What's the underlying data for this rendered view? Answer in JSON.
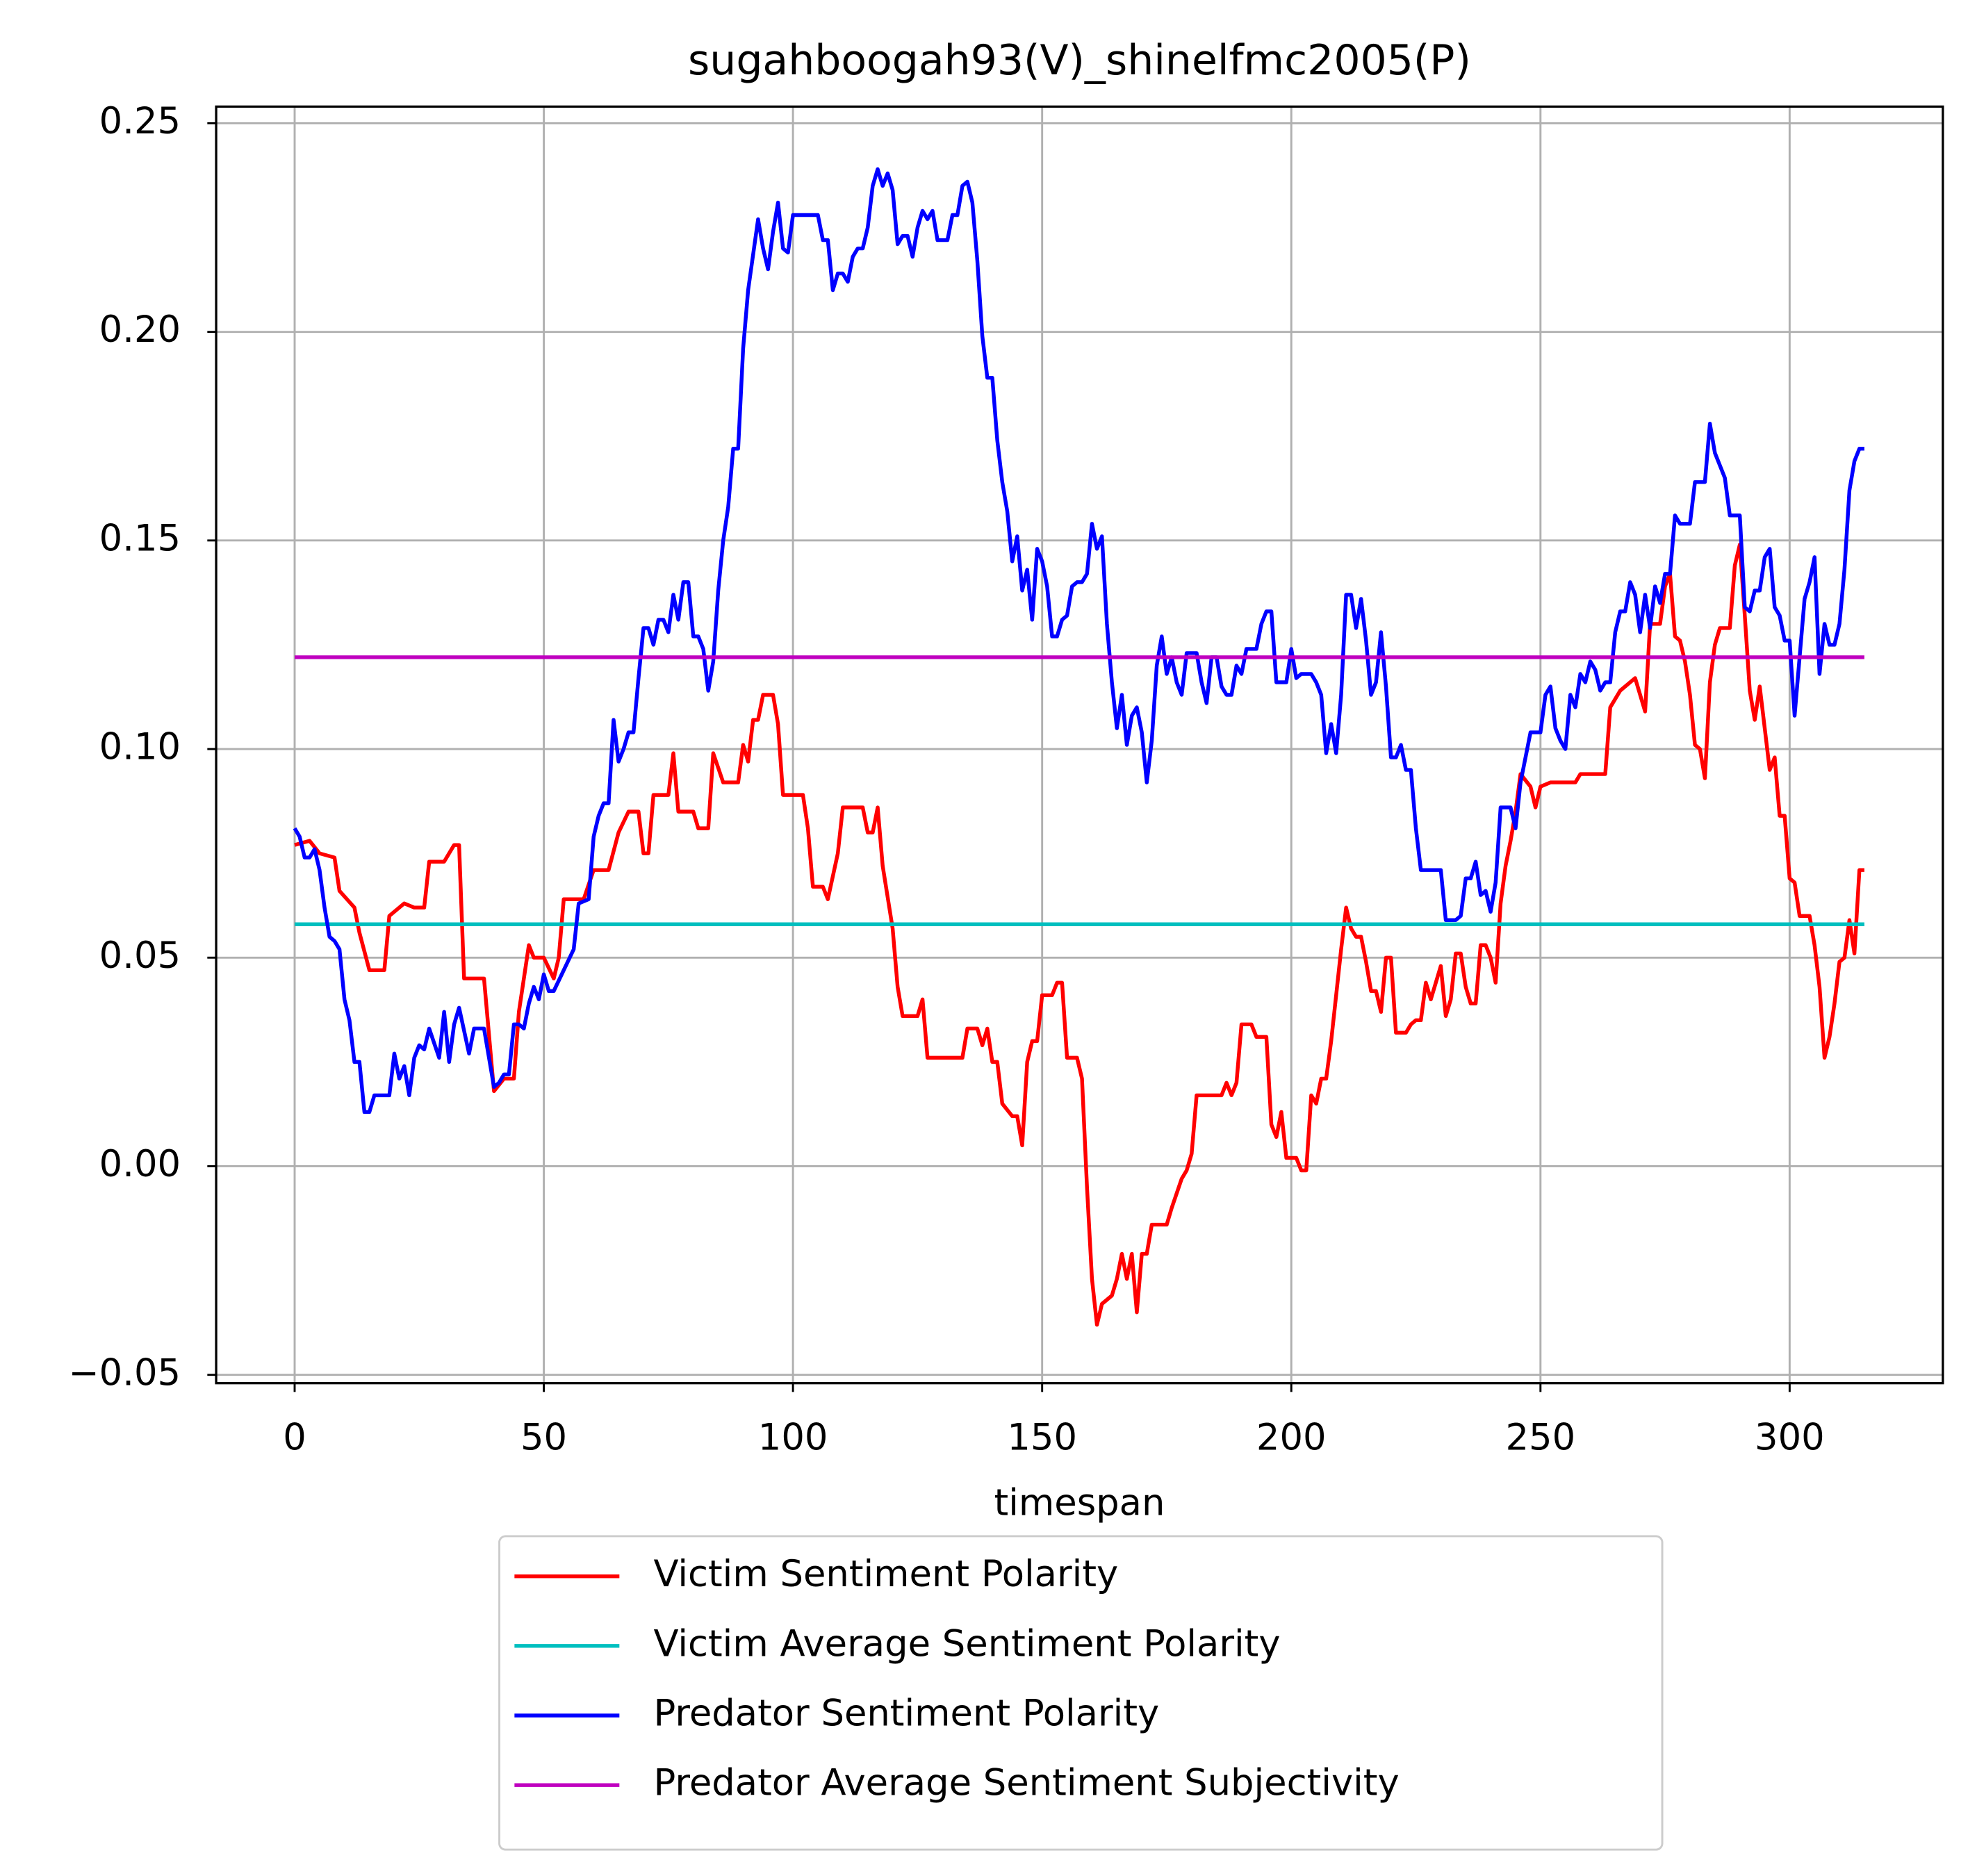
{
  "chart_data": {
    "type": "line",
    "title": "sugahboogah93(V)_shinelfmc2005(P)",
    "xlabel": "timespan",
    "xlim": [
      -15.75,
      330.75
    ],
    "ylim": [
      -0.052,
      0.254
    ],
    "xticks": [
      0,
      50,
      100,
      150,
      200,
      250,
      300
    ],
    "yticks": [
      {
        "value": -0.05,
        "label": "−0.05"
      },
      {
        "value": 0,
        "label": "0.00"
      },
      0.05,
      {
        "value": 0.1,
        "label": "0.10"
      },
      0.15,
      {
        "value": 0.2,
        "label": "0.20"
      },
      0.25
    ],
    "grid": true,
    "legend": "below",
    "series": [
      {
        "name": "Victim Sentiment Polarity",
        "color": "#ff0000",
        "x": [
          0,
          3,
          5,
          8,
          9,
          12,
          13,
          15,
          17,
          18,
          19,
          21,
          22,
          24,
          26,
          27,
          30,
          31,
          32,
          33,
          34,
          38,
          40,
          42,
          44,
          45,
          47,
          48,
          50,
          52,
          53,
          54,
          58,
          60,
          63,
          65,
          67,
          69,
          70,
          71,
          72,
          75,
          76,
          77,
          80,
          81,
          83,
          84,
          86,
          89,
          90,
          91,
          92,
          93,
          94,
          96,
          97,
          98,
          102,
          103,
          104,
          106,
          107,
          109,
          110,
          114,
          115,
          116,
          117,
          118,
          120,
          121,
          122,
          125,
          126,
          127,
          130,
          134,
          135,
          137,
          138,
          139,
          140,
          141,
          142,
          144,
          145,
          146,
          147,
          148,
          149,
          150,
          152,
          153,
          154,
          155,
          157,
          158,
          159,
          160,
          161,
          162,
          164,
          165,
          166,
          167,
          168,
          169,
          170,
          171,
          172,
          175,
          176,
          178,
          179,
          180,
          181,
          185,
          186,
          187,
          188,
          189,
          190,
          192,
          193,
          195,
          196,
          197,
          198,
          199,
          201,
          202,
          203,
          204,
          205,
          206,
          207,
          208,
          210,
          211,
          212,
          213,
          214,
          215,
          216,
          217,
          218,
          219,
          220,
          221,
          223,
          224,
          225,
          226,
          227,
          228,
          229,
          230,
          231,
          232,
          233,
          234,
          235,
          236,
          237,
          238,
          239,
          240,
          241,
          242,
          243,
          244,
          245,
          246,
          248,
          249,
          250,
          252,
          257,
          258,
          263,
          264,
          266,
          269,
          271,
          272,
          274,
          275,
          276,
          277,
          278,
          279,
          280,
          281,
          282,
          283,
          284,
          285,
          286,
          288,
          289,
          290,
          291,
          292,
          293,
          294,
          295,
          296,
          297,
          298,
          299,
          300,
          301,
          302,
          304,
          305,
          306,
          307,
          308,
          309,
          310,
          311,
          312,
          313,
          314,
          315
        ],
        "values": [
          0.077,
          0.078,
          0.075,
          0.074,
          0.066,
          0.062,
          0.056,
          0.047,
          0.047,
          0.047,
          0.06,
          0.062,
          0.063,
          0.062,
          0.062,
          0.073,
          0.073,
          0.075,
          0.077,
          0.077,
          0.045,
          0.045,
          0.018,
          0.021,
          0.021,
          0.037,
          0.053,
          0.05,
          0.05,
          0.045,
          0.05,
          0.064,
          0.064,
          0.071,
          0.071,
          0.08,
          0.085,
          0.085,
          0.075,
          0.075,
          0.089,
          0.089,
          0.099,
          0.085,
          0.085,
          0.081,
          0.081,
          0.099,
          0.092,
          0.092,
          0.101,
          0.097,
          0.107,
          0.107,
          0.113,
          0.113,
          0.106,
          0.089,
          0.089,
          0.081,
          0.067,
          0.067,
          0.064,
          0.075,
          0.086,
          0.086,
          0.08,
          0.08,
          0.086,
          0.072,
          0.057,
          0.043,
          0.036,
          0.036,
          0.04,
          0.026,
          0.026,
          0.026,
          0.033,
          0.033,
          0.029,
          0.033,
          0.025,
          0.025,
          0.015,
          0.012,
          0.012,
          0.005,
          0.025,
          0.03,
          0.03,
          0.041,
          0.041,
          0.044,
          0.044,
          0.026,
          0.026,
          0.021,
          -0.005,
          -0.027,
          -0.038,
          -0.033,
          -0.031,
          -0.027,
          -0.021,
          -0.027,
          -0.021,
          -0.035,
          -0.021,
          -0.021,
          -0.014,
          -0.014,
          -0.01,
          -0.003,
          -0.001,
          0.003,
          0.017,
          0.017,
          0.017,
          0.02,
          0.017,
          0.02,
          0.034,
          0.034,
          0.031,
          0.031,
          0.01,
          0.007,
          0.013,
          0.002,
          0.002,
          -0.001,
          -0.001,
          0.017,
          0.015,
          0.021,
          0.021,
          0.03,
          0.052,
          0.062,
          0.057,
          0.055,
          0.055,
          0.049,
          0.042,
          0.042,
          0.037,
          0.05,
          0.05,
          0.032,
          0.032,
          0.034,
          0.035,
          0.035,
          0.044,
          0.04,
          0.044,
          0.048,
          0.036,
          0.04,
          0.051,
          0.051,
          0.043,
          0.039,
          0.039,
          0.053,
          0.053,
          0.05,
          0.044,
          0.063,
          0.072,
          0.078,
          0.085,
          0.094,
          0.091,
          0.086,
          0.091,
          0.092,
          0.092,
          0.094,
          0.094,
          0.11,
          0.114,
          0.117,
          0.109,
          0.13,
          0.13,
          0.139,
          0.142,
          0.127,
          0.126,
          0.121,
          0.113,
          0.101,
          0.1,
          0.093,
          0.116,
          0.125,
          0.129,
          0.129,
          0.144,
          0.149,
          0.132,
          0.114,
          0.107,
          0.115,
          0.105,
          0.095,
          0.098,
          0.084,
          0.084,
          0.069,
          0.068,
          0.06,
          0.06,
          0.053,
          0.043,
          0.026,
          0.031,
          0.039,
          0.049,
          0.05,
          0.059,
          0.051,
          0.071,
          0.071
        ]
      },
      {
        "name": "Victim Average Sentiment Polarity",
        "color": "#00bfbf",
        "x": [
          0,
          315
        ],
        "values": [
          0.058,
          0.058
        ]
      },
      {
        "name": "Predator Sentiment Polarity",
        "color": "#0000ff",
        "x": [
          0,
          1,
          2,
          3,
          4,
          5,
          6,
          7,
          8,
          9,
          10,
          11,
          12,
          13,
          14,
          15,
          16,
          19,
          20,
          21,
          22,
          23,
          24,
          25,
          26,
          27,
          29,
          30,
          31,
          32,
          33,
          35,
          36,
          38,
          40,
          41,
          42,
          43,
          44,
          45,
          46,
          47,
          48,
          49,
          50,
          51,
          52,
          54,
          56,
          57,
          59,
          60,
          61,
          62,
          63,
          64,
          65,
          66,
          67,
          68,
          69,
          70,
          71,
          72,
          73,
          74,
          75,
          76,
          77,
          78,
          79,
          80,
          81,
          82,
          83,
          84,
          85,
          86,
          87,
          88,
          89,
          90,
          91,
          93,
          94,
          95,
          96,
          97,
          98,
          99,
          100,
          105,
          106,
          107,
          108,
          109,
          110,
          111,
          112,
          113,
          114,
          115,
          116,
          117,
          118,
          119,
          120,
          121,
          122,
          123,
          124,
          125,
          126,
          127,
          128,
          129,
          131,
          132,
          133,
          134,
          135,
          136,
          137,
          138,
          139,
          140,
          141,
          142,
          143,
          144,
          145,
          146,
          147,
          148,
          149,
          150,
          151,
          152,
          153,
          154,
          155,
          156,
          157,
          158,
          159,
          160,
          161,
          162,
          163,
          164,
          165,
          166,
          167,
          168,
          169,
          170,
          171,
          172,
          173,
          174,
          175,
          176,
          177,
          178,
          179,
          181,
          182,
          183,
          184,
          185,
          186,
          187,
          188,
          189,
          190,
          191,
          193,
          194,
          195,
          196,
          197,
          199,
          200,
          201,
          202,
          204,
          205,
          206,
          207,
          208,
          209,
          210,
          211,
          212,
          213,
          214,
          215,
          216,
          217,
          218,
          219,
          220,
          221,
          222,
          223,
          224,
          225,
          226,
          230,
          231,
          233,
          234,
          235,
          236,
          237,
          238,
          239,
          240,
          241,
          242,
          244,
          245,
          246,
          248,
          250,
          251,
          252,
          253,
          254,
          255,
          256,
          257,
          258,
          259,
          260,
          261,
          262,
          263,
          264,
          265,
          266,
          267,
          268,
          269,
          270,
          271,
          272,
          273,
          274,
          275,
          276,
          277,
          278,
          280,
          281,
          283,
          284,
          285,
          286,
          287,
          288,
          290,
          291,
          292,
          293,
          294,
          295,
          296,
          297,
          298,
          299,
          300,
          301,
          302,
          303,
          304,
          305,
          306,
          307,
          308,
          309,
          310,
          311,
          312,
          313,
          314,
          315
        ],
        "values": [
          0.081,
          0.079,
          0.074,
          0.074,
          0.076,
          0.071,
          0.062,
          0.055,
          0.054,
          0.052,
          0.04,
          0.035,
          0.025,
          0.025,
          0.013,
          0.013,
          0.017,
          0.017,
          0.027,
          0.021,
          0.024,
          0.017,
          0.026,
          0.029,
          0.028,
          0.033,
          0.026,
          0.037,
          0.025,
          0.034,
          0.038,
          0.027,
          0.033,
          0.033,
          0.019,
          0.02,
          0.022,
          0.022,
          0.034,
          0.034,
          0.033,
          0.039,
          0.043,
          0.04,
          0.046,
          0.042,
          0.042,
          0.047,
          0.052,
          0.063,
          0.064,
          0.079,
          0.084,
          0.087,
          0.087,
          0.107,
          0.097,
          0.1,
          0.104,
          0.104,
          0.117,
          0.129,
          0.129,
          0.125,
          0.131,
          0.131,
          0.128,
          0.137,
          0.131,
          0.14,
          0.14,
          0.127,
          0.127,
          0.124,
          0.114,
          0.121,
          0.138,
          0.15,
          0.158,
          0.172,
          0.172,
          0.196,
          0.21,
          0.227,
          0.22,
          0.215,
          0.224,
          0.231,
          0.22,
          0.219,
          0.228,
          0.228,
          0.222,
          0.222,
          0.21,
          0.214,
          0.214,
          0.212,
          0.218,
          0.22,
          0.22,
          0.225,
          0.235,
          0.239,
          0.235,
          0.238,
          0.234,
          0.221,
          0.223,
          0.223,
          0.218,
          0.225,
          0.229,
          0.227,
          0.229,
          0.222,
          0.222,
          0.228,
          0.228,
          0.235,
          0.236,
          0.231,
          0.217,
          0.199,
          0.189,
          0.189,
          0.174,
          0.164,
          0.157,
          0.145,
          0.151,
          0.138,
          0.143,
          0.131,
          0.148,
          0.145,
          0.139,
          0.127,
          0.127,
          0.131,
          0.132,
          0.139,
          0.14,
          0.14,
          0.142,
          0.154,
          0.148,
          0.151,
          0.13,
          0.116,
          0.105,
          0.113,
          0.101,
          0.108,
          0.11,
          0.104,
          0.092,
          0.102,
          0.12,
          0.127,
          0.118,
          0.122,
          0.116,
          0.113,
          0.123,
          0.123,
          0.116,
          0.111,
          0.122,
          0.122,
          0.115,
          0.113,
          0.113,
          0.12,
          0.118,
          0.124,
          0.124,
          0.13,
          0.133,
          0.133,
          0.116,
          0.116,
          0.124,
          0.117,
          0.118,
          0.118,
          0.116,
          0.113,
          0.099,
          0.106,
          0.099,
          0.113,
          0.137,
          0.137,
          0.129,
          0.136,
          0.126,
          0.113,
          0.116,
          0.128,
          0.115,
          0.098,
          0.098,
          0.101,
          0.095,
          0.095,
          0.081,
          0.071,
          0.071,
          0.059,
          0.059,
          0.06,
          0.069,
          0.069,
          0.073,
          0.065,
          0.066,
          0.061,
          0.068,
          0.086,
          0.086,
          0.081,
          0.092,
          0.104,
          0.104,
          0.113,
          0.115,
          0.105,
          0.102,
          0.1,
          0.113,
          0.11,
          0.118,
          0.116,
          0.121,
          0.119,
          0.114,
          0.116,
          0.116,
          0.128,
          0.133,
          0.133,
          0.14,
          0.137,
          0.128,
          0.137,
          0.129,
          0.139,
          0.135,
          0.142,
          0.142,
          0.156,
          0.154,
          0.154,
          0.164,
          0.164,
          0.178,
          0.171,
          0.168,
          0.165,
          0.156,
          0.156,
          0.134,
          0.133,
          0.138,
          0.138,
          0.146,
          0.148,
          0.134,
          0.132,
          0.126,
          0.126,
          0.108,
          0.122,
          0.136,
          0.14,
          0.146,
          0.118,
          0.13,
          0.125,
          0.125,
          0.13,
          0.143,
          0.162,
          0.169,
          0.172,
          0.172
        ]
      },
      {
        "name": "Predator Average Sentiment Subjectivity",
        "color": "#bf00bf",
        "x": [
          0,
          315
        ],
        "values": [
          0.122,
          0.122
        ]
      }
    ]
  }
}
